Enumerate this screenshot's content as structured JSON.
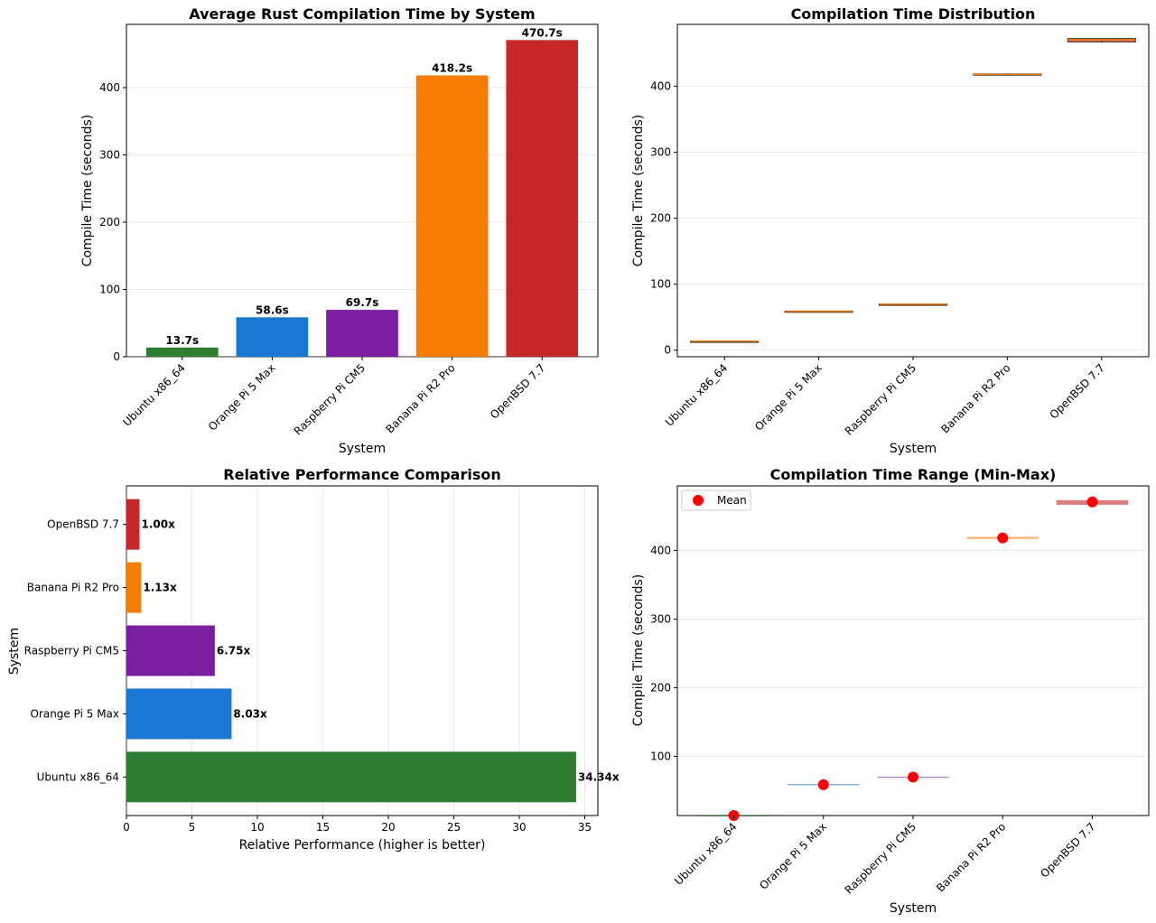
{
  "chart_data": [
    {
      "type": "bar",
      "title": "Average Rust Compilation Time by System",
      "xlabel": "System",
      "ylabel": "Compile Time (seconds)",
      "categories": [
        "Ubuntu x86_64",
        "Orange Pi 5 Max",
        "Raspberry Pi CM5",
        "Banana Pi R2 Pro",
        "OpenBSD 7.7"
      ],
      "values": [
        13.7,
        58.6,
        69.7,
        418.2,
        470.7
      ],
      "data_labels": [
        "13.7s",
        "58.6s",
        "69.7s",
        "418.2s",
        "470.7s"
      ],
      "colors": [
        "#2e7d32",
        "#1976d2",
        "#7b1fa2",
        "#f57c00",
        "#c62828"
      ],
      "ylim": [
        0,
        494
      ],
      "yticks": [
        0,
        100,
        200,
        300,
        400
      ],
      "grid": true
    },
    {
      "type": "box",
      "title": "Compilation Time Distribution",
      "xlabel": "System",
      "ylabel": "Compile Time (seconds)",
      "categories": [
        "Ubuntu x86_64",
        "Orange Pi 5 Max",
        "Raspberry Pi CM5",
        "Banana Pi R2 Pro",
        "OpenBSD 7.7"
      ],
      "boxes": [
        {
          "min": 13.5,
          "q1": 13.6,
          "median": 13.7,
          "q3": 13.8,
          "max": 13.9
        },
        {
          "min": 57.8,
          "q1": 58.2,
          "median": 58.6,
          "q3": 59.4,
          "max": 59.6
        },
        {
          "min": 69.3,
          "q1": 69.5,
          "median": 69.7,
          "q3": 70.0,
          "max": 70.2
        },
        {
          "min": 416.8,
          "q1": 417.4,
          "median": 418.2,
          "q3": 419.0,
          "max": 419.6
        },
        {
          "min": 466.5,
          "q1": 467.5,
          "median": 470.7,
          "q3": 472.5,
          "max": 473.0
        }
      ],
      "colors": [
        "#2e7d32",
        "#1976d2",
        "#7b1fa2",
        "#f57c00",
        "#c62828"
      ],
      "ylim": [
        -10,
        494
      ],
      "yticks": [
        0,
        100,
        200,
        300,
        400
      ],
      "grid": true
    },
    {
      "type": "barh",
      "title": "Relative Performance Comparison",
      "xlabel": "Relative Performance (higher is better)",
      "ylabel": "System",
      "categories": [
        "Ubuntu x86_64",
        "Orange Pi 5 Max",
        "Raspberry Pi CM5",
        "Banana Pi R2 Pro",
        "OpenBSD 7.7"
      ],
      "values": [
        34.34,
        8.03,
        6.75,
        1.13,
        1.0
      ],
      "data_labels": [
        "34.34x",
        "8.03x",
        "6.75x",
        "1.13x",
        "1.00x"
      ],
      "colors": [
        "#2e7d32",
        "#1976d2",
        "#7b1fa2",
        "#f57c00",
        "#c62828"
      ],
      "xlim": [
        0,
        36
      ],
      "xticks": [
        0,
        5,
        10,
        15,
        20,
        25,
        30,
        35
      ],
      "grid": true
    },
    {
      "type": "range",
      "title": "Compilation Time Range (Min-Max)",
      "xlabel": "System",
      "ylabel": "Compile Time (seconds)",
      "categories": [
        "Ubuntu x86_64",
        "Orange Pi 5 Max",
        "Raspberry Pi CM5",
        "Banana Pi R2 Pro",
        "OpenBSD 7.7"
      ],
      "ranges": [
        {
          "min": 13.5,
          "max": 13.9,
          "mean": 13.7
        },
        {
          "min": 57.8,
          "max": 59.6,
          "mean": 58.6
        },
        {
          "min": 69.3,
          "max": 70.2,
          "mean": 69.7
        },
        {
          "min": 416.8,
          "max": 419.6,
          "mean": 418.2
        },
        {
          "min": 466.5,
          "max": 473.0,
          "mean": 470.7
        }
      ],
      "legend": [
        "Mean"
      ],
      "legend_position": "top-left",
      "colors": [
        "#2e7d32",
        "#1976d2",
        "#7b1fa2",
        "#f57c00",
        "#c62828"
      ],
      "ylim": [
        13.7,
        494
      ],
      "yticks": [
        100,
        200,
        300,
        400
      ],
      "grid": true
    }
  ]
}
